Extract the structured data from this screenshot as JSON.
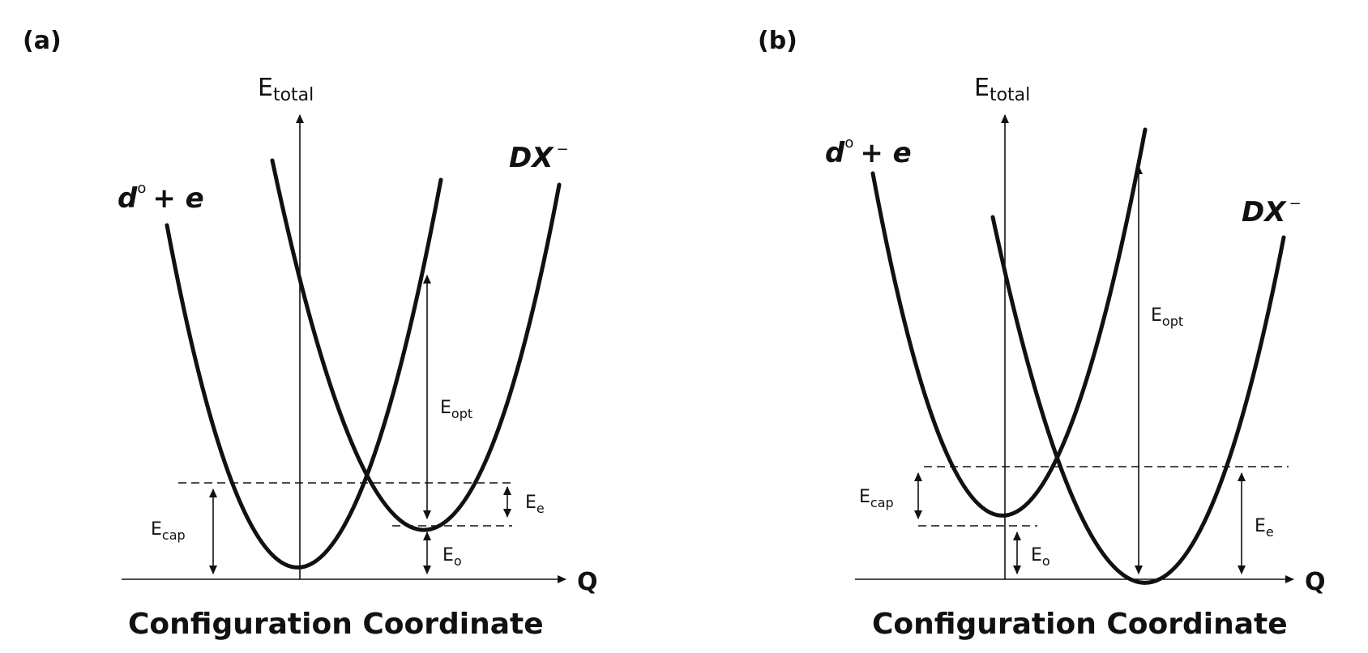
{
  "panels": [
    {
      "label": "(a)",
      "axis_y": {
        "main": "E",
        "sub": "total"
      },
      "axis_x": "Q",
      "state_left": {
        "main": "d",
        "sup": "o",
        "rest": "+ e"
      },
      "state_right": {
        "main": "DX",
        "sup": "−"
      },
      "energies": {
        "opt": {
          "main": "E",
          "sub": "opt"
        },
        "e": {
          "main": "E",
          "sub": "e"
        },
        "cap": {
          "main": "E",
          "sub": "cap"
        },
        "o": {
          "main": "E",
          "sub": "o"
        }
      },
      "caption": "Configuration Coordinate"
    },
    {
      "label": "(b)",
      "axis_y": {
        "main": "E",
        "sub": "total"
      },
      "axis_x": "Q",
      "state_left": {
        "main": "d",
        "sup": "o",
        "rest": "+ e"
      },
      "state_right": {
        "main": "DX",
        "sup": "−"
      },
      "energies": {
        "opt": {
          "main": "E",
          "sub": "opt"
        },
        "cap": {
          "main": "E",
          "sub": "cap"
        },
        "o": {
          "main": "E",
          "sub": "o"
        },
        "e": {
          "main": "E",
          "sub": "e"
        }
      },
      "caption": "Configuration Coordinate"
    }
  ]
}
